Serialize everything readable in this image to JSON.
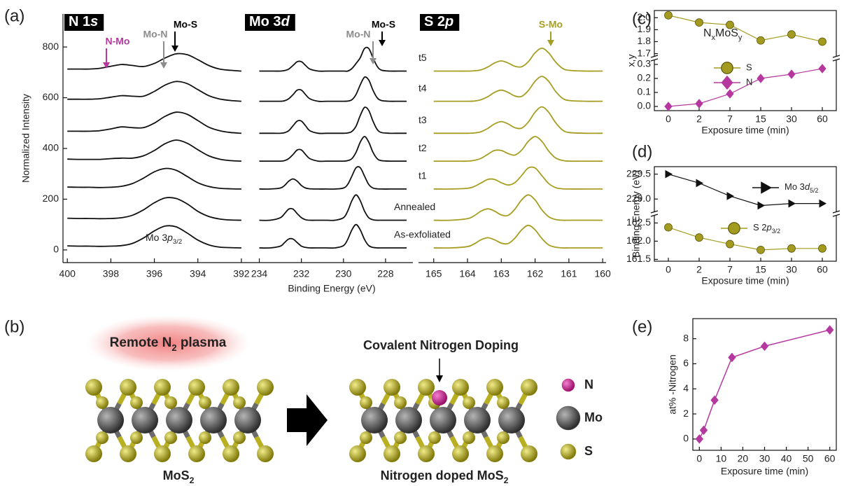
{
  "chart_data": [
    {
      "type": "line",
      "title": [
        "N 1",
        "s"
      ],
      "x": [
        400,
        399.5,
        399,
        398.5,
        398,
        397.5,
        397,
        396.5,
        396,
        395.5,
        395,
        394.5,
        394,
        393.5,
        393,
        392.5,
        392
      ],
      "xlim": [
        400.2,
        391.9
      ],
      "xticks": [
        400,
        398,
        396,
        394,
        392
      ],
      "ylim": [
        -50,
        930
      ],
      "yticks": [
        0,
        200,
        400,
        600,
        800
      ],
      "ylabel": "Normalized Intensity",
      "series": [
        {
          "color": "#111111",
          "values": [
            16,
            15,
            15,
            14,
            15,
            17,
            26,
            47,
            75,
            94,
            91,
            67,
            39,
            20,
            11,
            9,
            8
          ]
        },
        {
          "color": "#111111",
          "values": [
            125,
            124,
            124,
            123,
            124,
            127,
            137,
            158,
            186,
            205,
            203,
            182,
            152,
            132,
            122,
            118,
            117
          ]
        },
        {
          "color": "#111111",
          "values": [
            248,
            247,
            247,
            246,
            247,
            251,
            262,
            283,
            308,
            321,
            314,
            290,
            265,
            250,
            243,
            241,
            240
          ]
        },
        {
          "color": "#111111",
          "values": [
            358,
            357,
            357,
            357,
            360,
            362,
            362,
            371,
            392,
            419,
            433,
            421,
            395,
            371,
            358,
            352,
            350
          ]
        },
        {
          "color": "#111111",
          "values": [
            468,
            468,
            468,
            470,
            477,
            485,
            482,
            482,
            500,
            527,
            543,
            535,
            510,
            484,
            470,
            463,
            460
          ]
        },
        {
          "color": "#111111",
          "values": [
            594,
            594,
            594,
            596,
            602,
            608,
            606,
            606,
            625,
            650,
            664,
            656,
            632,
            608,
            595,
            589,
            586
          ]
        },
        {
          "color": "#111111",
          "values": [
            713,
            713,
            713,
            716,
            724,
            731,
            727,
            723,
            735,
            757,
            773,
            770,
            750,
            727,
            713,
            708,
            705
          ]
        }
      ],
      "annotations": [
        {
          "text": "N-Mo",
          "color": "#b5389f"
        },
        {
          "text": "Mo-N",
          "color": "#8c8c8c"
        },
        {
          "text": "Mo-S",
          "color": "#000000"
        }
      ],
      "peak_label": [
        "Mo 3",
        "p",
        "3/2"
      ]
    },
    {
      "type": "line",
      "title": [
        "Mo 3",
        "d"
      ],
      "x": [
        234,
        233.5,
        233,
        232.8,
        232.6,
        232.4,
        232.2,
        232,
        231.8,
        231.6,
        231.2,
        230.8,
        230.4,
        230,
        229.8,
        229.6,
        229.4,
        229.2,
        229,
        228.8,
        228.6,
        228.4,
        228.2,
        227.8,
        227.4,
        227
      ],
      "xlim": [
        234.75,
        226.7
      ],
      "xticks": [
        234,
        232,
        230,
        228
      ],
      "xlabel": "Binding Energy (eV)",
      "ylim": [
        -50,
        930
      ],
      "series": [
        {
          "name": "As-exfoliated",
          "color": "#111111",
          "values": [
            8,
            8,
            15,
            29,
            43,
            43,
            29,
            15,
            10,
            8,
            8,
            8,
            8,
            17,
            41,
            79,
            100,
            79,
            41,
            17,
            10,
            8,
            8,
            8,
            8,
            8
          ]
        },
        {
          "name": "Annealed",
          "color": "#111111",
          "values": [
            117,
            117,
            127,
            143,
            161,
            161,
            143,
            127,
            119,
            117,
            117,
            117,
            117,
            127,
            153,
            194,
            217,
            194,
            153,
            127,
            119,
            117,
            117,
            117,
            117,
            117
          ]
        },
        {
          "name": "t1",
          "color": "#111111",
          "values": [
            240,
            240,
            244,
            254,
            271,
            280,
            271,
            254,
            244,
            241,
            240,
            240,
            240,
            244,
            258,
            291,
            324,
            324,
            291,
            258,
            244,
            241,
            240,
            240,
            240,
            240
          ]
        },
        {
          "name": "t2",
          "color": "#111111",
          "values": [
            350,
            350,
            350,
            352,
            360,
            376,
            394,
            394,
            376,
            360,
            350,
            350,
            350,
            350,
            352,
            360,
            385,
            425,
            447,
            425,
            385,
            360,
            352,
            350,
            350,
            350
          ]
        },
        {
          "name": "t3",
          "color": "#111111",
          "values": [
            460,
            460,
            460,
            462,
            470,
            489,
            508,
            508,
            489,
            470,
            460,
            460,
            460,
            460,
            461,
            467,
            488,
            530,
            562,
            550,
            508,
            475,
            463,
            460,
            460,
            460
          ]
        },
        {
          "name": "t4",
          "color": "#111111",
          "values": [
            586,
            586,
            586,
            588,
            596,
            612,
            630,
            630,
            612,
            596,
            586,
            586,
            586,
            586,
            587,
            592,
            613,
            651,
            681,
            670,
            630,
            600,
            589,
            586,
            586,
            586
          ]
        },
        {
          "name": "t5",
          "color": "#111111",
          "values": [
            705,
            705,
            705,
            707,
            713,
            727,
            742,
            742,
            727,
            713,
            705,
            705,
            705,
            705,
            705,
            715,
            735,
            758,
            794,
            794,
            758,
            724,
            709,
            705,
            705,
            705
          ]
        }
      ],
      "annotations": [
        {
          "text": "Mo-N",
          "color": "#8c8c8c"
        },
        {
          "text": "Mo-S",
          "color": "#000000"
        }
      ]
    },
    {
      "type": "line",
      "title": [
        "S 2",
        "p"
      ],
      "x": [
        165,
        164.5,
        164,
        163.8,
        163.6,
        163.4,
        163.2,
        163,
        162.8,
        162.6,
        162.4,
        162.2,
        162,
        161.8,
        161.6,
        161.4,
        161.2,
        161,
        160.5,
        160
      ],
      "xlim": [
        165.45,
        159.9
      ],
      "xticks": [
        165,
        164,
        163,
        162,
        161,
        160
      ],
      "ylim": [
        -50,
        930
      ],
      "series": [
        {
          "color": "#a69e22",
          "values": [
            8,
            8,
            13,
            24,
            40,
            48,
            40,
            27,
            25,
            46,
            79,
            97,
            79,
            45,
            20,
            11,
            8,
            8,
            8,
            8
          ]
        },
        {
          "color": "#a69e22",
          "values": [
            117,
            117,
            123,
            135,
            153,
            162,
            153,
            138,
            136,
            160,
            197,
            217,
            197,
            158,
            131,
            120,
            117,
            117,
            117,
            117
          ]
        },
        {
          "color": "#a69e22",
          "values": [
            240,
            240,
            243,
            250,
            264,
            278,
            278,
            265,
            256,
            265,
            293,
            323,
            323,
            293,
            262,
            246,
            241,
            240,
            240,
            240
          ]
        },
        {
          "color": "#a69e22",
          "values": [
            350,
            350,
            350,
            353,
            361,
            377,
            392,
            392,
            380,
            374,
            393,
            428,
            447,
            428,
            390,
            363,
            353,
            350,
            350,
            350
          ]
        },
        {
          "color": "#a69e22",
          "values": [
            460,
            460,
            460,
            461,
            466,
            479,
            497,
            506,
            497,
            482,
            480,
            504,
            543,
            564,
            543,
            503,
            474,
            463,
            460,
            460
          ]
        },
        {
          "color": "#a69e22",
          "values": [
            586,
            586,
            586,
            587,
            592,
            604,
            621,
            630,
            621,
            607,
            605,
            628,
            665,
            684,
            665,
            626,
            599,
            589,
            586,
            586
          ]
        },
        {
          "color": "#a69e22",
          "values": [
            705,
            705,
            705,
            706,
            710,
            721,
            737,
            745,
            737,
            724,
            722,
            742,
            777,
            795,
            777,
            742,
            717,
            708,
            705,
            705
          ]
        }
      ],
      "annotations": [
        {
          "text": "S-Mo",
          "color": "#a69e22"
        }
      ]
    },
    {
      "type": "line",
      "categories": [
        "0",
        "2",
        "7",
        "15",
        "30",
        "60"
      ],
      "xlabel": "Exposure time (min)",
      "ylabel": "x,y",
      "ylim": [
        -0.03,
        0.33
      ],
      "yticks": [
        {
          "value": 0,
          "label": "0.0"
        },
        0.1,
        0.2,
        0.3
      ],
      "y2lim": [
        1.68,
        2.06
      ],
      "y2ticks": [
        1.7,
        1.8,
        1.9,
        {
          "value": 2,
          "label": "2.0"
        }
      ],
      "legend_title": [
        "N",
        "x",
        "MoS",
        "y"
      ],
      "series": [
        {
          "name": "S",
          "axis": "y2",
          "color": "#a39b1f",
          "marker": "circle",
          "values": [
            2.02,
            1.96,
            1.94,
            1.81,
            1.86,
            1.8
          ]
        },
        {
          "name": "N",
          "color": "#b5389f",
          "marker": "diamond",
          "values": [
            0,
            0.02,
            0.09,
            0.2,
            0.23,
            0.27
          ]
        }
      ]
    },
    {
      "type": "line",
      "categories": [
        "0",
        "2",
        "7",
        "15",
        "30",
        "60"
      ],
      "xlabel": "Exposure time (min)",
      "ylabel": "Binding Energy (eV)",
      "ylim": [
        161.45,
        162.7
      ],
      "yticks": [
        161.5,
        {
          "value": 162,
          "label": "162.0"
        },
        162.5
      ],
      "y2lim": [
        228.75,
        229.65
      ],
      "y2ticks": [
        {
          "value": 229,
          "label": "229.0"
        },
        229.5
      ],
      "series": [
        {
          "name": [
            "Mo 3",
            "d",
            "5/2"
          ],
          "axis": "y2",
          "color": "#111111",
          "marker": "triangle",
          "values": [
            229.5,
            229.32,
            229.06,
            228.87,
            228.91,
            228.91
          ]
        },
        {
          "name": [
            "S 2",
            "p",
            "3/2"
          ],
          "color": "#a39b1f",
          "marker": "circle",
          "values": [
            162.38,
            162.1,
            161.92,
            161.76,
            161.8,
            161.8
          ]
        }
      ]
    },
    {
      "type": "line",
      "x": [
        0,
        2,
        7,
        15,
        30,
        60
      ],
      "values": [
        0,
        0.7,
        3.1,
        6.5,
        7.4,
        8.7
      ],
      "color": "#b5389f",
      "marker": "diamond",
      "xlim": [
        -3,
        63
      ],
      "xticks": [
        0,
        10,
        20,
        30,
        40,
        50,
        60
      ],
      "ylim": [
        -0.9,
        9.6
      ],
      "yticks": [
        0,
        2,
        4,
        6,
        8
      ],
      "xlabel": "Exposure time (min)",
      "ylabel": "at% -Nitrogen"
    }
  ],
  "panel_labels": [
    "(a)",
    "(b)",
    "(c)",
    "(d)",
    "(e)"
  ],
  "schematic": {
    "plasma_label": [
      "Remote N",
      "2",
      " plasma"
    ],
    "doping_label": "Covalent Nitrogen Doping",
    "left_label": [
      "MoS",
      "2"
    ],
    "right_label": [
      "Nitrogen doped MoS",
      "2"
    ],
    "legend": [
      {
        "text": "N",
        "color": "#c0217f"
      },
      {
        "text": "Mo",
        "color": "#555555"
      },
      {
        "text": "S",
        "color": "#a39b1f"
      }
    ]
  }
}
